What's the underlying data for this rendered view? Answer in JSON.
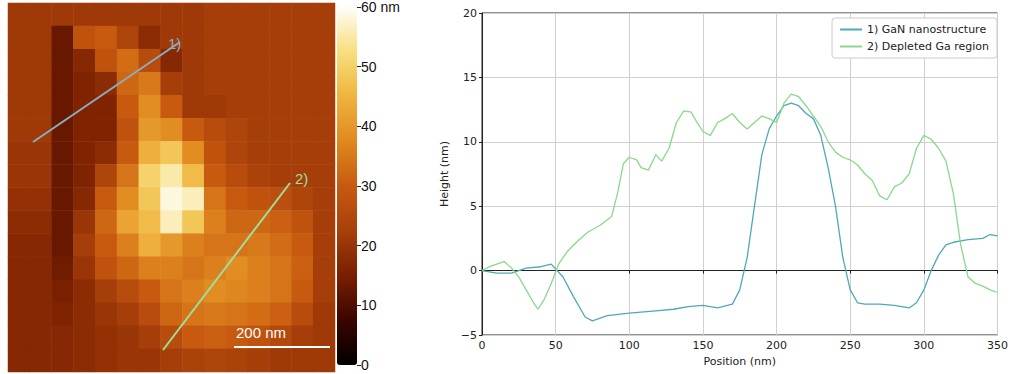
{
  "chart_data": [
    {
      "type": "heatmap",
      "tick_labels": false,
      "colors": [
        "#000000",
        "#3a0500",
        "#7a1f00",
        "#a8400a",
        "#c85a10",
        "#e08a20",
        "#f0b540",
        "#f8e080",
        "#ffffff"
      ],
      "colorbar": {
        "range": [
          0,
          60
        ],
        "ticks": [
          0,
          10,
          20,
          30,
          40,
          50,
          {
            "value": 60,
            "label": "60 nm"
          }
        ]
      },
      "cells": [
        [
          21,
          21,
          21,
          21,
          21,
          21,
          21,
          21,
          21,
          22,
          22,
          22,
          22,
          22,
          22
        ],
        [
          21,
          21,
          13,
          28,
          30,
          24,
          18,
          21,
          21,
          22,
          22,
          22,
          22,
          22,
          22
        ],
        [
          21,
          21,
          13,
          17,
          28,
          33,
          26,
          17,
          21,
          22,
          22,
          22,
          22,
          22,
          22
        ],
        [
          21,
          21,
          13,
          16,
          18,
          32,
          35,
          22,
          21,
          22,
          22,
          22,
          22,
          22,
          22
        ],
        [
          21,
          21,
          13,
          16,
          16,
          30,
          38,
          30,
          21,
          21,
          22,
          22,
          22,
          22,
          22
        ],
        [
          21,
          21,
          13,
          16,
          16,
          28,
          40,
          38,
          30,
          26,
          24,
          22,
          22,
          22,
          22
        ],
        [
          20,
          20,
          13,
          16,
          18,
          30,
          44,
          48,
          38,
          28,
          24,
          22,
          22,
          22,
          22
        ],
        [
          20,
          20,
          13,
          16,
          24,
          34,
          50,
          55,
          46,
          30,
          26,
          23,
          22,
          22,
          22
        ],
        [
          19,
          19,
          13,
          17,
          30,
          38,
          48,
          58,
          56,
          34,
          30,
          28,
          27,
          24,
          22
        ],
        [
          18,
          18,
          13,
          20,
          32,
          42,
          46,
          56,
          48,
          36,
          32,
          32,
          31,
          28,
          22
        ],
        [
          17,
          17,
          13,
          22,
          30,
          36,
          44,
          40,
          36,
          34,
          34,
          35,
          33,
          30,
          22
        ],
        [
          17,
          17,
          14,
          20,
          28,
          32,
          36,
          36,
          34,
          36,
          38,
          36,
          34,
          31,
          22
        ],
        [
          17,
          17,
          15,
          18,
          22,
          26,
          30,
          34,
          36,
          38,
          37,
          36,
          34,
          30,
          22
        ],
        [
          17,
          17,
          16,
          18,
          20,
          22,
          26,
          32,
          34,
          35,
          34,
          33,
          31,
          26,
          21
        ],
        [
          17,
          17,
          17,
          18,
          19,
          20,
          22,
          26,
          30,
          31,
          30,
          28,
          25,
          22,
          21
        ],
        [
          17,
          17,
          17,
          18,
          19,
          20,
          20,
          22,
          23,
          24,
          23,
          22,
          21,
          21,
          21
        ]
      ],
      "annotations": [
        {
          "text": "1)",
          "color": "#8aaec0"
        },
        {
          "text": "2)",
          "color": "#9ede9e"
        },
        {
          "text": "200 nm",
          "color": "#ffffff"
        }
      ]
    },
    {
      "type": "line",
      "xlabel": "Position (nm)",
      "ylabel": "Height (nm)",
      "xlim": [
        0,
        350
      ],
      "xticks": [
        0,
        50,
        100,
        150,
        200,
        250,
        300,
        350
      ],
      "ylim": [
        -5,
        20
      ],
      "yticks": [
        {
          "value": -5,
          "label": "−5"
        },
        0,
        5,
        10,
        15,
        20
      ],
      "grid": true,
      "legend": "upper right",
      "series": [
        {
          "name": "1) GaN nanostructure",
          "color": "#4fa8b8",
          "x": [
            0,
            10,
            20,
            30,
            40,
            47,
            55,
            62,
            70,
            75,
            85,
            100,
            110,
            120,
            130,
            140,
            150,
            160,
            170,
            175,
            180,
            185,
            190,
            195,
            200,
            205,
            210,
            215,
            220,
            225,
            230,
            235,
            240,
            245,
            250,
            255,
            260,
            270,
            280,
            290,
            295,
            300,
            305,
            310,
            315,
            320,
            330,
            340,
            345,
            350
          ],
          "values": [
            0,
            -0.2,
            -0.2,
            0.2,
            0.3,
            0.5,
            -0.5,
            -2,
            -3.6,
            -3.9,
            -3.5,
            -3.3,
            -3.2,
            -3.1,
            -3.0,
            -2.8,
            -2.7,
            -2.9,
            -2.6,
            -1.5,
            1,
            5,
            9,
            11,
            12,
            12.8,
            13,
            12.8,
            12.2,
            11.8,
            10.5,
            8,
            5,
            1,
            -1.5,
            -2.5,
            -2.6,
            -2.6,
            -2.7,
            -2.9,
            -2.5,
            -1.5,
            0,
            1.2,
            2,
            2.2,
            2.4,
            2.5,
            2.8,
            2.7
          ]
        },
        {
          "name": "2) Depleted Ga region",
          "color": "#8ad98a",
          "x": [
            0,
            5,
            10,
            15,
            20,
            25,
            30,
            35,
            38,
            42,
            47,
            52,
            58,
            65,
            72,
            80,
            88,
            92,
            96,
            100,
            105,
            108,
            113,
            118,
            122,
            127,
            132,
            137,
            142,
            146,
            150,
            155,
            160,
            165,
            170,
            175,
            180,
            185,
            190,
            195,
            200,
            205,
            210,
            215,
            220,
            225,
            230,
            235,
            240,
            245,
            250,
            255,
            260,
            265,
            270,
            275,
            280,
            285,
            290,
            295,
            300,
            305,
            310,
            315,
            320,
            325,
            330,
            335,
            340,
            345,
            350
          ],
          "values": [
            0,
            0.3,
            0.5,
            0.7,
            0.2,
            -0.5,
            -1.5,
            -2.5,
            -3,
            -2.3,
            -1,
            0.5,
            1.5,
            2.3,
            3,
            3.5,
            4.2,
            6,
            8.3,
            8.8,
            8.6,
            8,
            7.8,
            9,
            8.5,
            9.5,
            11.5,
            12.4,
            12.3,
            11.5,
            10.8,
            10.5,
            11.5,
            11.8,
            12.2,
            11.5,
            11,
            11.5,
            12,
            11.8,
            11.5,
            13,
            13.7,
            13.5,
            12.8,
            12,
            11.2,
            10,
            9.2,
            8.8,
            8.6,
            8.2,
            7.5,
            7,
            5.8,
            5.5,
            6.5,
            6.8,
            7.5,
            9.5,
            10.5,
            10.2,
            9.5,
            8.5,
            6,
            2,
            -0.5,
            -1,
            -1.2,
            -1.5,
            -1.7
          ]
        }
      ]
    }
  ]
}
